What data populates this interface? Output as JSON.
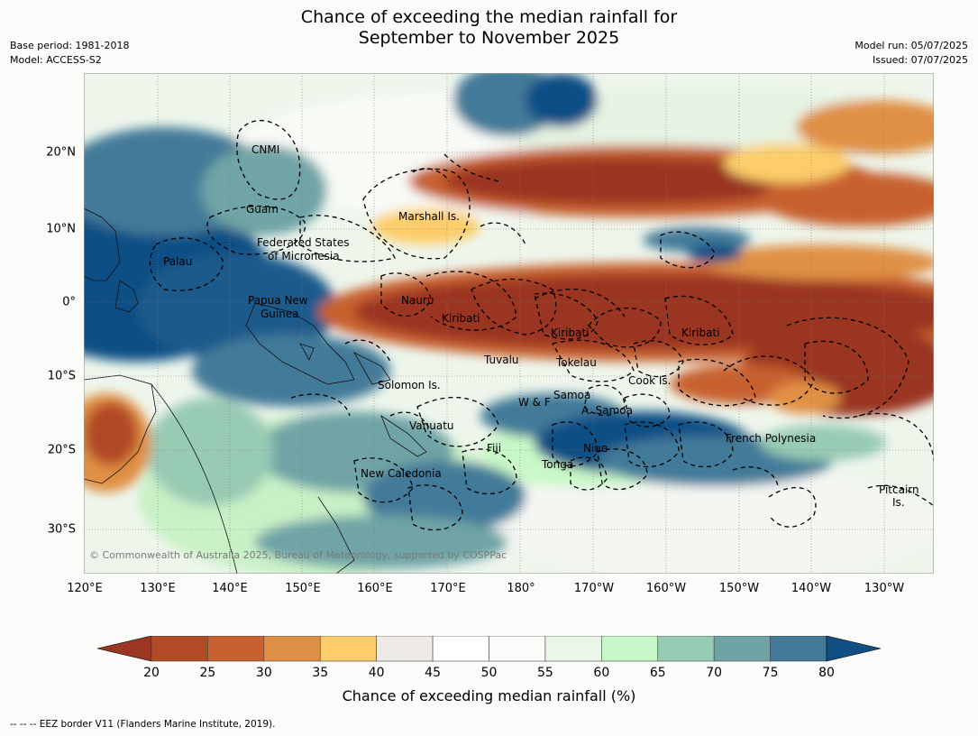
{
  "title_line1": "Chance of exceeding the median rainfall for",
  "title_line2": "September to November 2025",
  "base_period": "Base period: 1981-2018",
  "model": "Model: ACCESS-S2",
  "model_run": "Model run: 05/07/2025",
  "issued": "Issued: 07/07/2025",
  "copyright": "© Commonwealth of Australia 2025, Bureau of Meteorology, supported by COSPPac",
  "footnote": "-- -- -- EEZ border V11 (Flanders Marine Institute, 2019).",
  "lon_ticks": [
    "120°E",
    "130°E",
    "140°E",
    "150°E",
    "160°E",
    "170°E",
    "180°",
    "170°W",
    "160°W",
    "150°W",
    "140°W",
    "130°W"
  ],
  "lat_ticks": [
    "20°N",
    "10°N",
    "0°",
    "10°S",
    "20°S",
    "30°S"
  ],
  "colorbar": {
    "title": "Chance of exceeding median rainfall (%)",
    "labels": [
      "20",
      "25",
      "30",
      "35",
      "40",
      "45",
      "50",
      "55",
      "60",
      "65",
      "70",
      "75",
      "80"
    ],
    "colors": [
      "#9a3621",
      "#b24a25",
      "#c8612f",
      "#e09045",
      "#fccd6a",
      "#eeebe6",
      "#ffffff",
      "#fcfdfb",
      "#eaf6e7",
      "#c9f8c8",
      "#98cbb3",
      "#6fa4a6",
      "#437a99",
      "#114f85"
    ]
  },
  "regions": [
    {
      "name": "CNMI"
    },
    {
      "name": "Guam"
    },
    {
      "name": "Marshall Is."
    },
    {
      "name": "Federated States"
    },
    {
      "name": "of Micronesia"
    },
    {
      "name": "Palau"
    },
    {
      "name": "Papua New"
    },
    {
      "name": "Guinea"
    },
    {
      "name": "Nauru"
    },
    {
      "name": "Kiribati"
    },
    {
      "name": "Kiribati"
    },
    {
      "name": "Kiribati"
    },
    {
      "name": "Tuvalu"
    },
    {
      "name": "Tokelau"
    },
    {
      "name": "Cook Is."
    },
    {
      "name": "Solomon Is."
    },
    {
      "name": "W & F"
    },
    {
      "name": "Samoa"
    },
    {
      "name": "A. Samoa"
    },
    {
      "name": "Vanuatu"
    },
    {
      "name": "Fiji"
    },
    {
      "name": "Niue"
    },
    {
      "name": "Tonga"
    },
    {
      "name": "French Polynesia"
    },
    {
      "name": "New Caledonia"
    },
    {
      "name": "Pitcairn"
    },
    {
      "name": "Is."
    }
  ]
}
